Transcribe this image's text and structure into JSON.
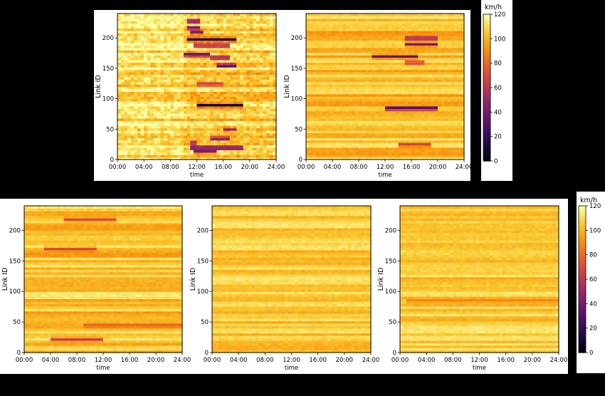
{
  "colors": {
    "background": "#000000",
    "panel_background": "#ffffff",
    "colormap": "inferno"
  },
  "chart_data": [
    {
      "type": "heatmap",
      "xlabel": "time",
      "ylabel": "Link ID",
      "x_ticks": [
        "00:00",
        "04:00",
        "08:00",
        "12:00",
        "16:00",
        "20:00",
        "24:00"
      ],
      "y_ticks": [
        0,
        50,
        100,
        150,
        200
      ],
      "xlim": [
        0,
        24
      ],
      "ylim": [
        0,
        240
      ],
      "value_range": [
        0,
        120
      ],
      "pattern": "noisy",
      "congestion": [
        {
          "link": 228,
          "start": 10.5,
          "end": 12.5,
          "speed": 20
        },
        {
          "link": 217,
          "start": 10.5,
          "end": 12.5,
          "speed": 25
        },
        {
          "link": 210,
          "start": 11,
          "end": 13,
          "speed": 40
        },
        {
          "link": 198,
          "start": 10.5,
          "end": 18,
          "speed": 15
        },
        {
          "link": 188,
          "start": 11.5,
          "end": 17,
          "speed": 35
        },
        {
          "link": 173,
          "start": 10,
          "end": 14,
          "speed": 15
        },
        {
          "link": 168,
          "start": 14,
          "end": 17,
          "speed": 30
        },
        {
          "link": 155,
          "start": 15,
          "end": 18,
          "speed": 15
        },
        {
          "link": 125,
          "start": 12,
          "end": 16,
          "speed": 60
        },
        {
          "link": 90,
          "start": 12,
          "end": 19,
          "speed": 10
        },
        {
          "link": 50,
          "start": 16,
          "end": 18,
          "speed": 50
        },
        {
          "link": 35,
          "start": 14,
          "end": 17,
          "speed": 35
        },
        {
          "link": 28,
          "start": 11,
          "end": 12,
          "speed": 35
        },
        {
          "link": 20,
          "start": 11,
          "end": 19,
          "speed": 10
        },
        {
          "link": 14,
          "start": 11.5,
          "end": 15,
          "speed": 40
        }
      ]
    },
    {
      "type": "heatmap",
      "xlabel": "time",
      "ylabel": "Link ID",
      "x_ticks": [
        "00:00",
        "04:00",
        "08:00",
        "12:00",
        "16:00",
        "20:00",
        "24:00"
      ],
      "y_ticks": [
        0,
        50,
        100,
        150,
        200
      ],
      "xlim": [
        0,
        24
      ],
      "ylim": [
        0,
        240
      ],
      "value_range": [
        0,
        120
      ],
      "pattern": "smooth",
      "congestion": [
        {
          "link": 200,
          "start": 15,
          "end": 20,
          "speed": 40
        },
        {
          "link": 190,
          "start": 15,
          "end": 20,
          "speed": 40
        },
        {
          "link": 170,
          "start": 10,
          "end": 17,
          "speed": 35
        },
        {
          "link": 160,
          "start": 15,
          "end": 18,
          "speed": 55
        },
        {
          "link": 85,
          "start": 12,
          "end": 20,
          "speed": 10
        },
        {
          "link": 25,
          "start": 14,
          "end": 19,
          "speed": 55
        }
      ]
    },
    {
      "type": "heatmap",
      "xlabel": "time",
      "ylabel": "Link ID",
      "x_ticks": [
        "00:00",
        "04:00",
        "08:00",
        "12:00",
        "16:00",
        "20:00",
        "24:00"
      ],
      "y_ticks": [
        0,
        50,
        100,
        150,
        200
      ],
      "xlim": [
        0,
        24
      ],
      "ylim": [
        0,
        240
      ],
      "value_range": [
        0,
        120
      ],
      "pattern": "smooth",
      "congestion": [
        {
          "link": 218,
          "start": 6,
          "end": 14,
          "speed": 70
        },
        {
          "link": 170,
          "start": 3,
          "end": 11,
          "speed": 70
        },
        {
          "link": 45,
          "start": 9,
          "end": 24,
          "speed": 75
        },
        {
          "link": 22,
          "start": 4,
          "end": 12,
          "speed": 65
        }
      ]
    },
    {
      "type": "heatmap",
      "xlabel": "time",
      "ylabel": "Link ID",
      "x_ticks": [
        "00:00",
        "04:00",
        "08:00",
        "12:00",
        "16:00",
        "20:00",
        "24:00"
      ],
      "y_ticks": [
        0,
        50,
        100,
        150,
        200
      ],
      "xlim": [
        0,
        24
      ],
      "ylim": [
        0,
        240
      ],
      "value_range": [
        0,
        120
      ],
      "pattern": "uniform",
      "congestion": []
    },
    {
      "type": "heatmap",
      "xlabel": "time",
      "ylabel": "Link ID",
      "x_ticks": [
        "00:00",
        "04:00",
        "08:00",
        "12:00",
        "16:00",
        "20:00",
        "24:00"
      ],
      "y_ticks": [
        0,
        50,
        100,
        150,
        200
      ],
      "xlim": [
        0,
        24
      ],
      "ylim": [
        0,
        240
      ],
      "value_range": [
        0,
        120
      ],
      "pattern": "uniform",
      "congestion": [
        {
          "link": 85,
          "start": 1,
          "end": 24,
          "speed": 85
        }
      ]
    }
  ],
  "colorbars": [
    {
      "label": "km/h",
      "ticks": [
        0,
        20,
        40,
        60,
        80,
        100,
        120
      ],
      "range": [
        0,
        120
      ]
    },
    {
      "label": "km/h",
      "ticks": [
        0,
        20,
        40,
        60,
        80,
        100,
        120
      ],
      "range": [
        0,
        120
      ]
    }
  ]
}
